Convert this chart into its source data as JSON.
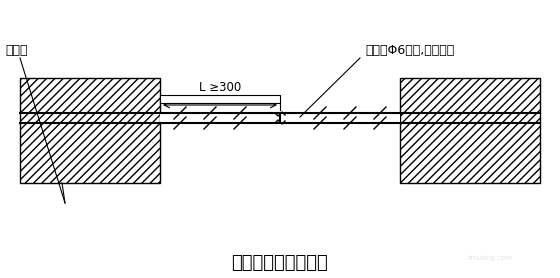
{
  "title": "拉结筋与结构柱作法",
  "label_left": "结构柱",
  "label_right": "墙内置Φ6钢筋,贯通全长",
  "dimension_label": "L ≥300",
  "bg_color": "#ffffff",
  "hatch_color": "#000000",
  "line_color": "#000000",
  "title_fontsize": 13,
  "label_fontsize": 9,
  "dim_fontsize": 8.5
}
